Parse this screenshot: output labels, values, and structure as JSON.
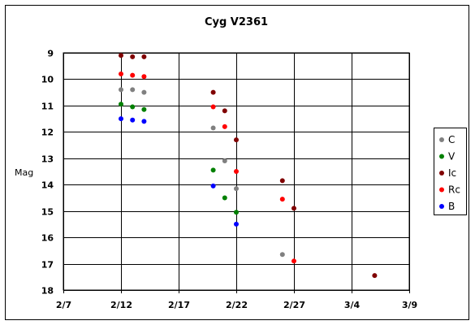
{
  "chart_data": {
    "type": "scatter",
    "title": "Cyg V2361",
    "xlabel": "",
    "ylabel": "Mag",
    "x_ticks": [
      "2/7",
      "2/12",
      "2/17",
      "2/22",
      "2/27",
      "3/4",
      "3/9"
    ],
    "xlim": [
      "2/7",
      "3/9"
    ],
    "y_ticks": [
      "9",
      "10",
      "11",
      "12",
      "13",
      "14",
      "15",
      "16",
      "17",
      "18"
    ],
    "ylim": [
      18,
      9
    ],
    "y_reversed": true,
    "grid": "major",
    "legend_position": "right",
    "series": [
      {
        "name": "C",
        "color": "#808080",
        "points": [
          {
            "x": "2/12",
            "y": 10.4
          },
          {
            "x": "2/13",
            "y": 10.4
          },
          {
            "x": "2/14",
            "y": 10.5
          },
          {
            "x": "2/20",
            "y": 11.85
          },
          {
            "x": "2/21",
            "y": 13.1
          },
          {
            "x": "2/22",
            "y": 14.15
          },
          {
            "x": "2/26",
            "y": 16.65
          }
        ]
      },
      {
        "name": "V",
        "color": "#008000",
        "points": [
          {
            "x": "2/12",
            "y": 10.95
          },
          {
            "x": "2/13",
            "y": 11.05
          },
          {
            "x": "2/14",
            "y": 11.15
          },
          {
            "x": "2/20",
            "y": 13.45
          },
          {
            "x": "2/21",
            "y": 14.5
          },
          {
            "x": "2/22",
            "y": 15.05
          }
        ]
      },
      {
        "name": "Ic",
        "color": "#800000",
        "points": [
          {
            "x": "2/12",
            "y": 9.1
          },
          {
            "x": "2/13",
            "y": 9.15
          },
          {
            "x": "2/14",
            "y": 9.15
          },
          {
            "x": "2/20",
            "y": 10.5
          },
          {
            "x": "2/21",
            "y": 11.2
          },
          {
            "x": "2/22",
            "y": 12.3
          },
          {
            "x": "2/26",
            "y": 13.85
          },
          {
            "x": "2/27",
            "y": 14.9
          },
          {
            "x": "3/6",
            "y": 17.45
          }
        ]
      },
      {
        "name": "Rc",
        "color": "#ff0000",
        "points": [
          {
            "x": "2/12",
            "y": 9.8
          },
          {
            "x": "2/13",
            "y": 9.85
          },
          {
            "x": "2/14",
            "y": 9.9
          },
          {
            "x": "2/20",
            "y": 11.05
          },
          {
            "x": "2/21",
            "y": 11.8
          },
          {
            "x": "2/22",
            "y": 13.5
          },
          {
            "x": "2/26",
            "y": 14.55
          },
          {
            "x": "2/27",
            "y": 16.9
          }
        ]
      },
      {
        "name": "B",
        "color": "#0000ff",
        "points": [
          {
            "x": "2/12",
            "y": 11.5
          },
          {
            "x": "2/13",
            "y": 11.55
          },
          {
            "x": "2/14",
            "y": 11.6
          },
          {
            "x": "2/20",
            "y": 14.05
          },
          {
            "x": "2/22",
            "y": 15.5
          }
        ]
      }
    ]
  }
}
